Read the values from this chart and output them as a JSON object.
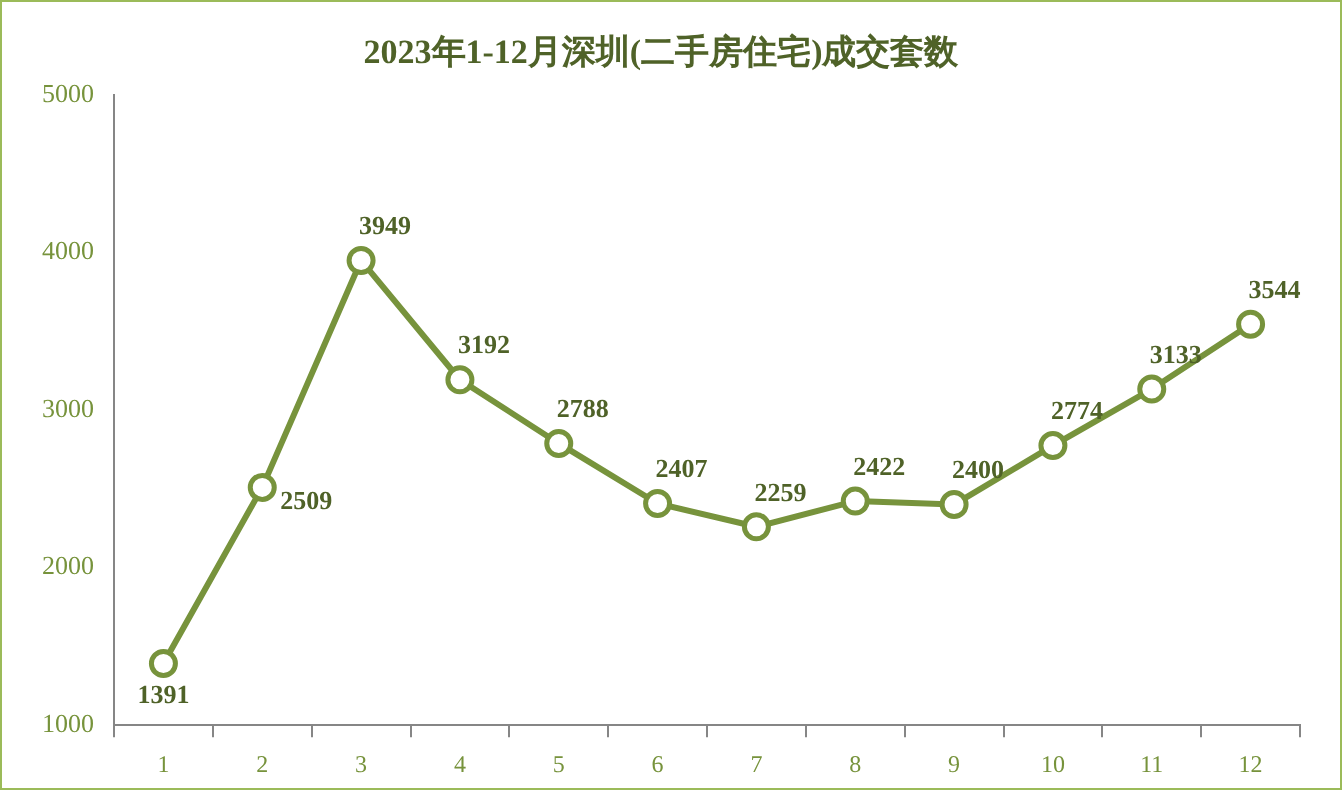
{
  "chart_data": {
    "type": "line",
    "title": "2023年1-12月深圳(二手房住宅)成交套数",
    "categories": [
      "1",
      "2",
      "3",
      "4",
      "5",
      "6",
      "7",
      "8",
      "9",
      "10",
      "11",
      "12"
    ],
    "series": [
      {
        "color": "#77933c",
        "values": [
          1391,
          2509,
          3949,
          3192,
          2788,
          2407,
          2259,
          2422,
          2400,
          2774,
          3133,
          3544
        ]
      }
    ],
    "ylim": [
      1000,
      5000
    ],
    "yticks": [
      1000,
      2000,
      3000,
      4000,
      5000
    ],
    "grid": false,
    "legend": false,
    "marker": "circle",
    "line_style": "solid",
    "data_labels": true
  }
}
